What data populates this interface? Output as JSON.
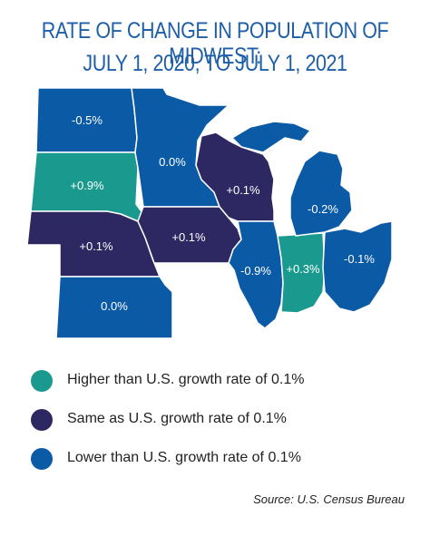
{
  "title": {
    "line1": "RATE OF CHANGE IN POPULATION OF MIDWEST:",
    "line2": "JULY 1, 2020, TO JULY 1, 2021"
  },
  "colors": {
    "higher": "#1a9a8e",
    "same": "#2e2862",
    "lower": "#0b5aa6",
    "title": "#1f5fa8"
  },
  "states": {
    "north_dakota": {
      "label": "-0.5%",
      "category": "lower"
    },
    "south_dakota": {
      "label": "+0.9%",
      "category": "higher"
    },
    "nebraska": {
      "label": "+0.1%",
      "category": "same"
    },
    "kansas": {
      "label": "0.0%",
      "category": "lower"
    },
    "minnesota": {
      "label": "0.0%",
      "category": "lower"
    },
    "iowa": {
      "label": "+0.1%",
      "category": "same"
    },
    "wisconsin": {
      "label": "+0.1%",
      "category": "same"
    },
    "illinois": {
      "label": "-0.9%",
      "category": "lower"
    },
    "indiana": {
      "label": "+0.3%",
      "category": "higher"
    },
    "michigan": {
      "label": "-0.2%",
      "category": "lower"
    },
    "ohio": {
      "label": "-0.1%",
      "category": "lower"
    }
  },
  "legend": {
    "higher": "Higher than U.S. growth rate of 0.1%",
    "same": "Same as U.S. growth rate of 0.1%",
    "lower": "Lower than U.S. growth rate of 0.1%"
  },
  "source": "Source: U.S. Census Bureau"
}
